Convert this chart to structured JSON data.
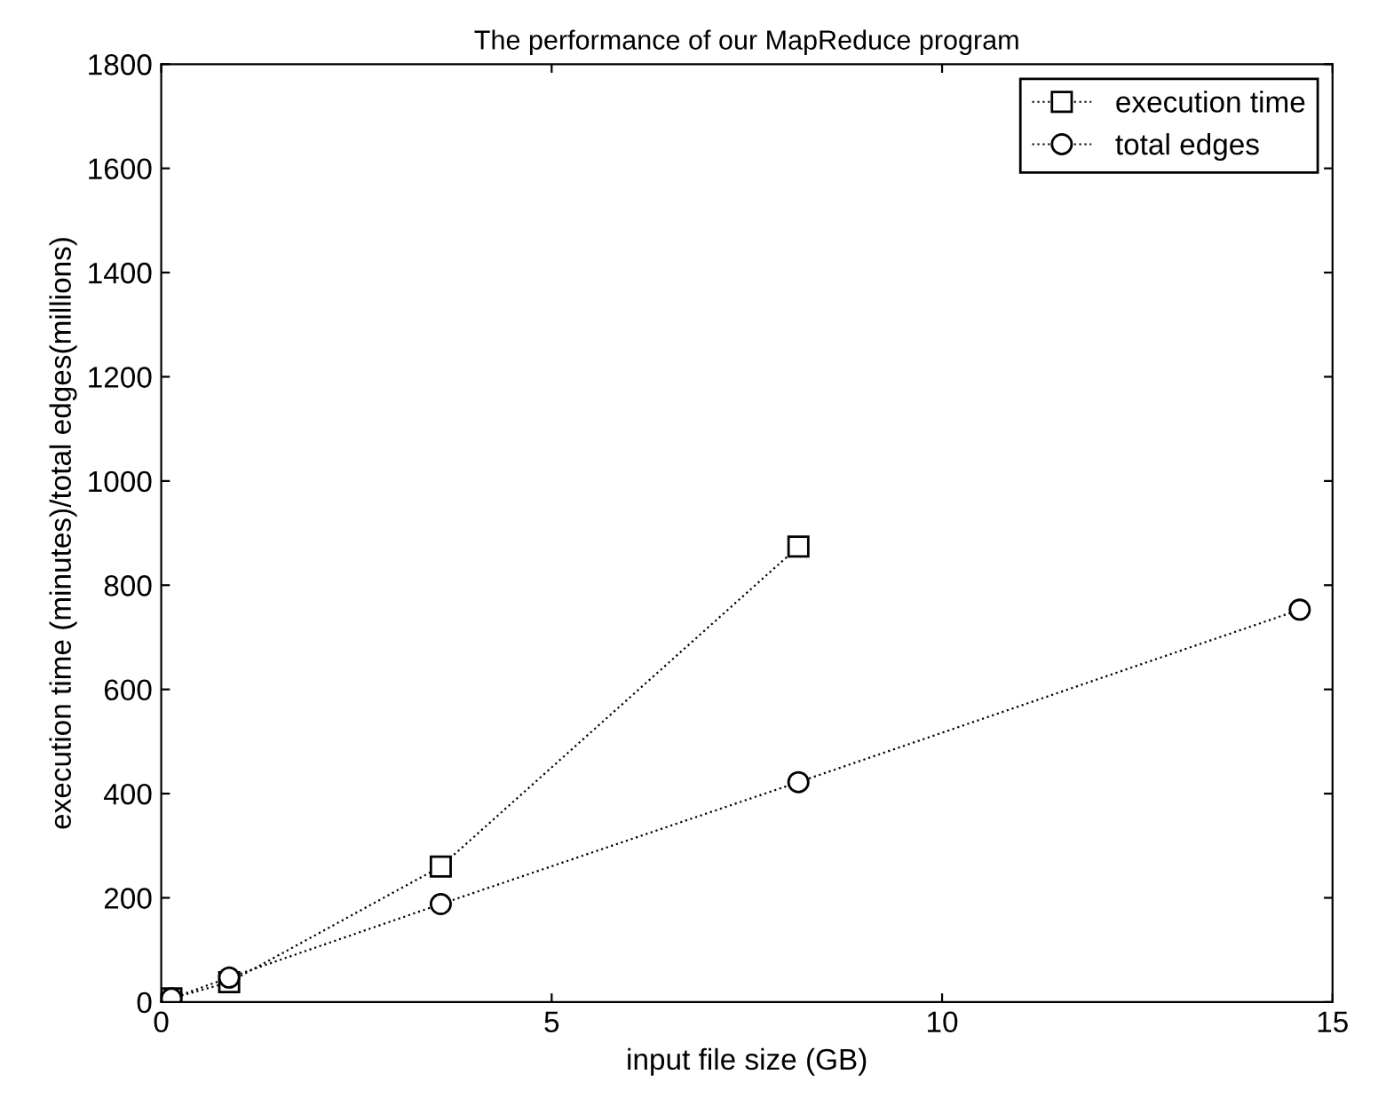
{
  "chart_data": {
    "type": "line",
    "title": "The performance of our MapReduce program",
    "xlabel": "input file size (GB)",
    "ylabel": "execution time (minutes)/total edges(millions)",
    "x": [
      0.13,
      0.87,
      3.58,
      8.16,
      14.58
    ],
    "series": [
      {
        "name": "execution time",
        "color": "#000000",
        "marker": "square",
        "values": [
          7,
          38,
          260,
          874,
          null
        ]
      },
      {
        "name": "total edges",
        "color": "#000000",
        "marker": "circle",
        "values": [
          7,
          47,
          188,
          422,
          753
        ]
      }
    ],
    "xlim": [
      0,
      15
    ],
    "xticks": [
      0,
      5,
      10,
      15
    ],
    "ylim": [
      0,
      1800
    ],
    "yticks": [
      0,
      200,
      400,
      600,
      800,
      1000,
      1200,
      1400,
      1600,
      1800
    ],
    "grid": false,
    "legend": "top right",
    "line_style": "dotted"
  }
}
